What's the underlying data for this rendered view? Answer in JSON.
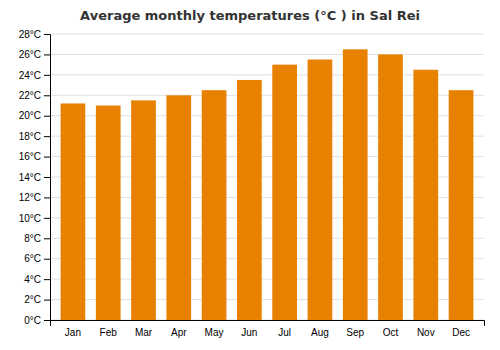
{
  "chart_data": {
    "type": "bar",
    "title": "Average monthly temperatures (°C ) in Sal Rei",
    "categories": [
      "Jan",
      "Feb",
      "Mar",
      "Apr",
      "May",
      "Jun",
      "Jul",
      "Aug",
      "Sep",
      "Oct",
      "Nov",
      "Dec"
    ],
    "values": [
      21.2,
      21.0,
      21.5,
      22.0,
      22.5,
      23.5,
      25.0,
      25.5,
      26.5,
      26.0,
      24.5,
      22.5
    ],
    "color": "#E88000",
    "ylim": [
      0,
      28
    ],
    "yticks": [
      {
        "value": 0,
        "label": "0°C"
      },
      {
        "value": 2,
        "label": "2°C"
      },
      {
        "value": 4,
        "label": "4°C"
      },
      {
        "value": 6,
        "label": "6°C"
      },
      {
        "value": 8,
        "label": "8°C"
      },
      {
        "value": 10,
        "label": "10°C"
      },
      {
        "value": 12,
        "label": "12°C"
      },
      {
        "value": 14,
        "label": "14°C"
      },
      {
        "value": 16,
        "label": "16°C"
      },
      {
        "value": 18,
        "label": "18°C"
      },
      {
        "value": 20,
        "label": "20°C"
      },
      {
        "value": 22,
        "label": "22°C"
      },
      {
        "value": 24,
        "label": "24°C"
      },
      {
        "value": 26,
        "label": "26°C"
      },
      {
        "value": 28,
        "label": "28°C"
      }
    ],
    "grid": true
  }
}
